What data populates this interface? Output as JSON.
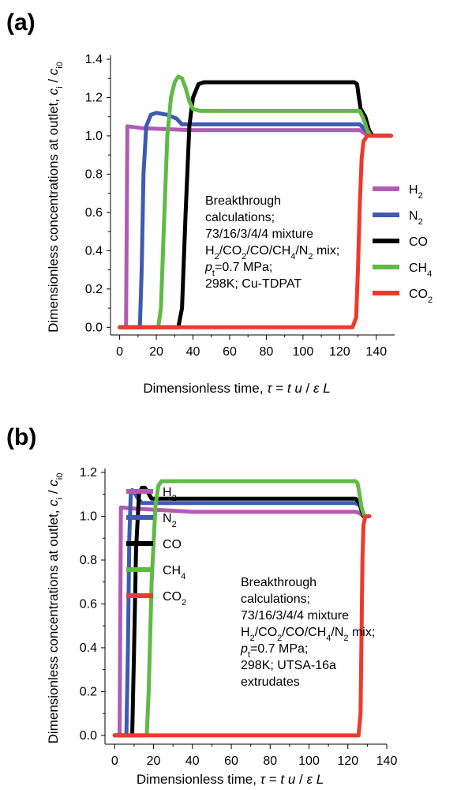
{
  "chart_data": [
    {
      "panel": "(a)",
      "type": "line",
      "xlabel_main": "Dimensionless time, ",
      "xlabel_sym": "τ",
      "xlabel_rest": " = ",
      "xlabel_t": "t",
      "xlabel_u": "u",
      "xlabel_slash": " / ",
      "xlabel_eps": "ε",
      "xlabel_L": "L",
      "ylabel_main": "Dimensionless concentrations at outlet, ",
      "ylabel_c": "c",
      "ylabel_i": "i",
      "ylabel_slash": " / ",
      "ylabel_c0": "c",
      "ylabel_i0": "i0",
      "xlim": [
        -5,
        150
      ],
      "ylim": [
        -0.04,
        1.4
      ],
      "xticks": [
        0,
        20,
        40,
        60,
        80,
        100,
        120,
        140
      ],
      "yticks": [
        0.0,
        0.2,
        0.4,
        0.6,
        0.8,
        1.0,
        1.2,
        1.4
      ],
      "xtick_labels": [
        "0",
        "20",
        "40",
        "60",
        "80",
        "100",
        "120",
        "140"
      ],
      "ytick_labels": [
        "0.0",
        "0.2",
        "0.4",
        "0.6",
        "0.8",
        "1.0",
        "1.2",
        "1.4"
      ],
      "legend_position": "right",
      "annotation": [
        "Breakthrough",
        "calculations;",
        "73/16/3/4/4  mixture",
        "H2/CO2/CO/CH4/N2 mix;",
        "pt=0.7 MPa;",
        "298K; Cu-TDPAT"
      ],
      "series": [
        {
          "name": "H2",
          "sub": "2",
          "base": "H",
          "color": "#b35bb3",
          "points": [
            [
              0,
              0
            ],
            [
              3.5,
              0
            ],
            [
              4.2,
              1.05
            ],
            [
              12,
              1.04
            ],
            [
              40,
              1.03
            ],
            [
              128,
              1.03
            ],
            [
              131,
              1.03
            ],
            [
              134,
              1.01
            ],
            [
              137,
              1.0
            ],
            [
              148,
              1.0
            ]
          ]
        },
        {
          "name": "N2",
          "sub": "2",
          "base": "N",
          "color": "#3e5bb0",
          "points": [
            [
              0,
              0
            ],
            [
              11,
              0
            ],
            [
              12,
              0.3
            ],
            [
              13,
              0.8
            ],
            [
              14.5,
              1.05
            ],
            [
              17,
              1.11
            ],
            [
              20,
              1.12
            ],
            [
              26,
              1.11
            ],
            [
              31,
              1.09
            ],
            [
              34,
              1.06
            ],
            [
              40,
              1.06
            ],
            [
              128,
              1.06
            ],
            [
              131,
              1.06
            ],
            [
              134,
              1.03
            ],
            [
              137,
              1.0
            ],
            [
              148,
              1.0
            ]
          ]
        },
        {
          "name": "CO",
          "sub": "",
          "base": "CO",
          "color": "#000000",
          "points": [
            [
              0,
              0
            ],
            [
              32,
              0
            ],
            [
              34,
              0.1
            ],
            [
              36,
              0.6
            ],
            [
              38,
              1.05
            ],
            [
              40,
              1.2
            ],
            [
              43,
              1.27
            ],
            [
              46,
              1.28
            ],
            [
              60,
              1.28
            ],
            [
              128,
              1.28
            ],
            [
              129.5,
              1.27
            ],
            [
              130.5,
              1.2
            ],
            [
              131.5,
              1.14
            ],
            [
              134,
              1.1
            ],
            [
              136,
              1.03
            ],
            [
              138,
              1.0
            ],
            [
              148,
              1.0
            ]
          ]
        },
        {
          "name": "CH4",
          "sub": "4",
          "base": "CH",
          "color": "#5fba46",
          "points": [
            [
              0,
              0
            ],
            [
              21,
              0
            ],
            [
              22.5,
              0.1
            ],
            [
              24,
              0.5
            ],
            [
              26,
              1.0
            ],
            [
              28,
              1.2
            ],
            [
              30,
              1.28
            ],
            [
              32,
              1.31
            ],
            [
              34,
              1.3
            ],
            [
              36,
              1.25
            ],
            [
              38,
              1.18
            ],
            [
              40,
              1.14
            ],
            [
              44,
              1.13
            ],
            [
              60,
              1.13
            ],
            [
              128,
              1.13
            ],
            [
              131,
              1.13
            ],
            [
              133,
              1.09
            ],
            [
              135,
              1.03
            ],
            [
              137,
              1.0
            ],
            [
              148,
              1.0
            ]
          ]
        },
        {
          "name": "CO2",
          "sub": "2",
          "base": "CO",
          "color": "#ee3a2e",
          "points": [
            [
              0,
              0
            ],
            [
              127,
              0
            ],
            [
              129,
              0.05
            ],
            [
              130,
              0.3
            ],
            [
              131,
              0.65
            ],
            [
              132,
              0.88
            ],
            [
              133,
              0.97
            ],
            [
              135,
              1.0
            ],
            [
              148,
              1.0
            ]
          ]
        }
      ]
    },
    {
      "panel": "(b)",
      "type": "line",
      "xlabel_main": "Dimensionless time, ",
      "xlabel_sym": "τ",
      "xlabel_rest": " = ",
      "xlabel_t": "t",
      "xlabel_u": "u",
      "xlabel_slash": " / ",
      "xlabel_eps": "ε",
      "xlabel_L": "L",
      "ylabel_main": "Dimensionless concentrations at outlet, ",
      "ylabel_c": "c",
      "ylabel_i": "i",
      "ylabel_slash": " / ",
      "ylabel_c0": "c",
      "ylabel_i0": "i0",
      "xlim": [
        -5,
        140
      ],
      "ylim": [
        -0.04,
        1.2
      ],
      "xticks": [
        0,
        20,
        40,
        60,
        80,
        100,
        120,
        140
      ],
      "yticks": [
        0.0,
        0.2,
        0.4,
        0.6,
        0.8,
        1.0,
        1.2
      ],
      "xtick_labels": [
        "0",
        "20",
        "40",
        "60",
        "80",
        "100",
        "120",
        "140"
      ],
      "ytick_labels": [
        "0.0",
        "0.2",
        "0.4",
        "0.6",
        "0.8",
        "1.0",
        "1.2"
      ],
      "legend_position": "center-left",
      "annotation": [
        "Breakthrough",
        "calculations;",
        "73/16/3/4/4  mixture",
        "H2/CO2/CO/CH4/N2 mix;",
        "pt=0.7 MPa;",
        "298K; UTSA-16a",
        "extrudates"
      ],
      "series": [
        {
          "name": "H2",
          "sub": "2",
          "base": "H",
          "color": "#b35bb3",
          "points": [
            [
              0,
              0
            ],
            [
              2.5,
              0
            ],
            [
              3.2,
              1.04
            ],
            [
              10,
              1.035
            ],
            [
              40,
              1.02
            ],
            [
              124,
              1.02
            ],
            [
              126,
              1.015
            ],
            [
              128,
              1.0
            ],
            [
              131,
              1.0
            ]
          ]
        },
        {
          "name": "N2",
          "sub": "2",
          "base": "N",
          "color": "#3e5bb0",
          "points": [
            [
              0,
              0
            ],
            [
              6,
              0
            ],
            [
              6.8,
              0.4
            ],
            [
              7.5,
              0.9
            ],
            [
              8.3,
              1.1
            ],
            [
              9,
              1.12
            ],
            [
              10,
              1.11
            ],
            [
              12,
              1.08
            ],
            [
              14,
              1.06
            ],
            [
              18,
              1.06
            ],
            [
              124,
              1.06
            ],
            [
              126,
              1.05
            ],
            [
              128,
              1.0
            ],
            [
              131,
              1.0
            ]
          ]
        },
        {
          "name": "CO",
          "sub": "",
          "base": "CO",
          "color": "#000000",
          "points": [
            [
              0,
              0
            ],
            [
              9,
              0
            ],
            [
              10,
              0.4
            ],
            [
              11,
              0.85
            ],
            [
              12.5,
              1.1
            ],
            [
              14,
              1.13
            ],
            [
              15.5,
              1.13
            ],
            [
              17,
              1.11
            ],
            [
              19,
              1.08
            ],
            [
              22,
              1.08
            ],
            [
              124,
              1.08
            ],
            [
              126,
              1.06
            ],
            [
              128,
              1.0
            ],
            [
              131,
              1.0
            ]
          ]
        },
        {
          "name": "CH4",
          "sub": "4",
          "base": "CH",
          "color": "#5fba46",
          "points": [
            [
              0,
              0
            ],
            [
              16.5,
              0
            ],
            [
              17.5,
              0.2
            ],
            [
              19,
              0.7
            ],
            [
              21,
              1.05
            ],
            [
              22.5,
              1.14
            ],
            [
              24,
              1.16
            ],
            [
              30,
              1.16
            ],
            [
              124,
              1.16
            ],
            [
              125,
              1.15
            ],
            [
              126,
              1.1
            ],
            [
              127,
              1.04
            ],
            [
              128.5,
              1.0
            ],
            [
              131,
              1.0
            ]
          ]
        },
        {
          "name": "CO2",
          "sub": "2",
          "base": "CO",
          "color": "#ee3a2e",
          "points": [
            [
              0,
              0
            ],
            [
              125.5,
              0
            ],
            [
              126.5,
              0.1
            ],
            [
              127,
              0.45
            ],
            [
              127.5,
              0.8
            ],
            [
              128,
              0.96
            ],
            [
              129,
              1.0
            ],
            [
              131,
              1.0
            ]
          ]
        }
      ]
    }
  ]
}
